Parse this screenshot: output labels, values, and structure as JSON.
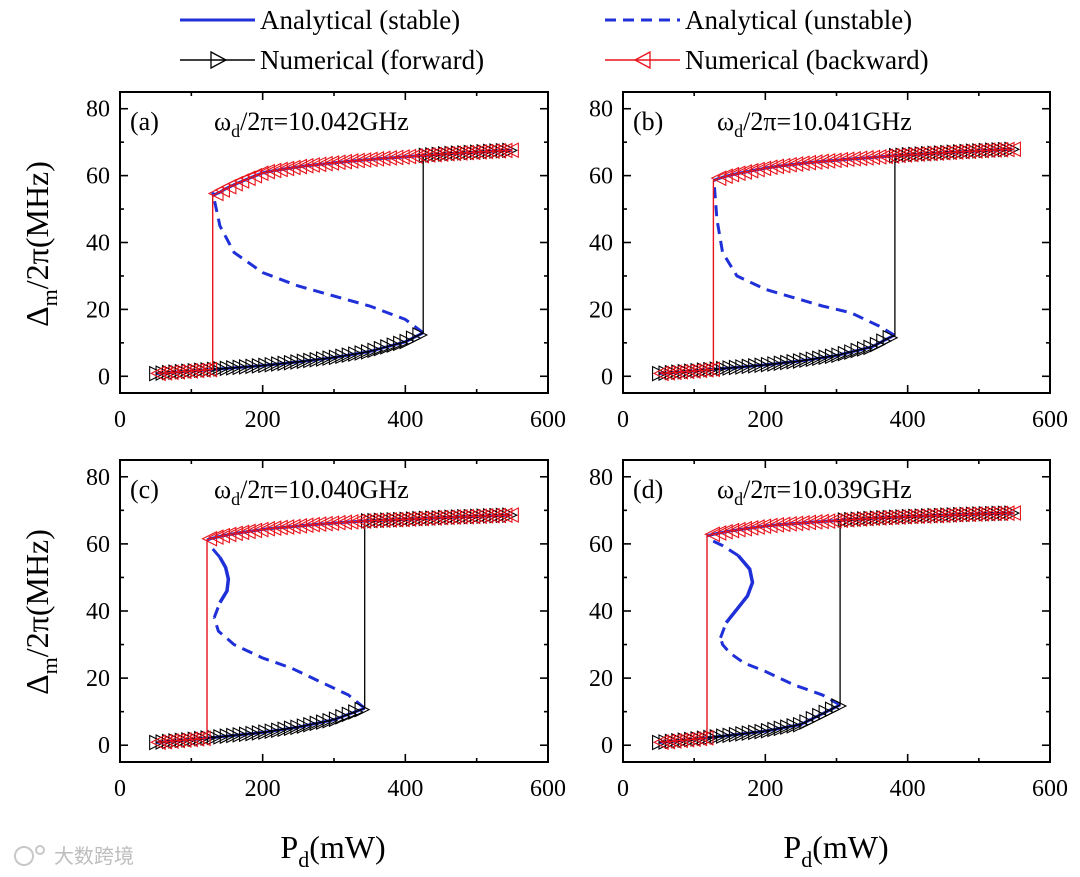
{
  "legend": {
    "items": [
      {
        "label": "Analytical (stable)",
        "style": "solid",
        "color": "#1f30d8",
        "marker": "none"
      },
      {
        "label": "Analytical (unstable)",
        "style": "dashed",
        "color": "#1f30d8",
        "marker": "none"
      },
      {
        "label": "Numerical (forward)",
        "style": "solid",
        "color": "#000000",
        "marker": "triangle-right"
      },
      {
        "label": "Numerical (backward)",
        "style": "solid",
        "color": "#e8121a",
        "marker": "triangle-left"
      }
    ]
  },
  "colors": {
    "analytical": "#1f30d8",
    "forward": "#000000",
    "backward": "#e8121a",
    "axis": "#000000"
  },
  "axis_titles": {
    "ylabel_top": {
      "a": "Δ",
      "b": "m",
      "c": "/2π(MHz)"
    },
    "ylabel_bottom": {
      "a": "Δ",
      "b": "m",
      "c": "/2π(MHz)"
    },
    "xlabel_left": {
      "a": "P",
      "b": "d",
      "c": "(mW)"
    },
    "xlabel_right": {
      "a": "P",
      "b": "d",
      "c": "(mW)"
    }
  },
  "watermark": {
    "text": "大数跨境"
  },
  "chart_data": [
    {
      "type": "line",
      "panel": "(a)",
      "freq": {
        "sym": "ω",
        "sub": "d",
        "rest": "/2π=10.042GHz"
      },
      "xlim": [
        0,
        600
      ],
      "ylim": [
        -5,
        85
      ],
      "xticks": [
        0,
        200,
        400,
        600
      ],
      "yticks": [
        0,
        20,
        40,
        60,
        80
      ],
      "x_sample": [
        50,
        100,
        140,
        200,
        250,
        300,
        350,
        400,
        425,
        450,
        500,
        550
      ],
      "lower_branch": [
        0.8,
        1.6,
        2.2,
        3.2,
        4.3,
        5.6,
        7.4,
        10.3,
        13.0,
        null,
        null,
        null
      ],
      "upper_branch": [
        null,
        null,
        55.0,
        60.8,
        62.6,
        63.8,
        64.8,
        65.6,
        66.0,
        66.4,
        67.0,
        67.6
      ],
      "fold_low_mW": 130,
      "fold_high_mW": 425,
      "unstable_branch": {
        "P": [
          425,
          400,
          350,
          300,
          250,
          200,
          160,
          140,
          130
        ],
        "delta": [
          13.0,
          17.0,
          21.0,
          24.0,
          27.0,
          31.0,
          37.0,
          45.0,
          55.0
        ]
      },
      "stable_middle_branch": null
    },
    {
      "type": "line",
      "panel": "(b)",
      "freq": {
        "sym": "ω",
        "sub": "d",
        "rest": "/2π=10.041GHz"
      },
      "xlim": [
        0,
        600
      ],
      "ylim": [
        -5,
        85
      ],
      "xticks": [
        0,
        200,
        400,
        600
      ],
      "yticks": [
        0,
        20,
        40,
        60,
        80
      ],
      "x_sample": [
        50,
        100,
        140,
        200,
        250,
        300,
        350,
        380,
        400,
        450,
        500,
        550
      ],
      "lower_branch": [
        0.8,
        1.6,
        2.3,
        3.4,
        4.6,
        6.2,
        8.8,
        12.2,
        null,
        null,
        null,
        null
      ],
      "upper_branch": [
        null,
        null,
        59.5,
        62.2,
        63.6,
        64.6,
        65.4,
        65.9,
        66.2,
        66.8,
        67.4,
        67.9
      ],
      "fold_low_mW": 127,
      "fold_high_mW": 382,
      "unstable_branch": {
        "P": [
          382,
          360,
          320,
          280,
          240,
          200,
          160,
          140,
          132,
          128
        ],
        "delta": [
          12.2,
          15.0,
          19.0,
          21.0,
          23.5,
          26.0,
          30.0,
          37.0,
          47.0,
          58.0
        ]
      },
      "stable_middle_branch": null
    },
    {
      "type": "line",
      "panel": "(c)",
      "freq": {
        "sym": "ω",
        "sub": "d",
        "rest": "/2π=10.040GHz"
      },
      "xlim": [
        0,
        600
      ],
      "ylim": [
        -5,
        85
      ],
      "xticks": [
        0,
        200,
        400,
        600
      ],
      "yticks": [
        0,
        20,
        40,
        60,
        80
      ],
      "x_sample": [
        50,
        100,
        140,
        200,
        250,
        300,
        343,
        400,
        450,
        500,
        550
      ],
      "lower_branch": [
        0.8,
        1.7,
        2.5,
        3.8,
        5.4,
        7.6,
        11.0,
        null,
        null,
        null,
        null
      ],
      "upper_branch": [
        null,
        null,
        62.2,
        64.3,
        65.3,
        66.2,
        66.8,
        67.3,
        67.8,
        68.2,
        68.6
      ],
      "fold_low_mW": 122,
      "fold_high_mW": 343,
      "unstable_branch": {
        "P": [
          343,
          320,
          280,
          240,
          200,
          160,
          138,
          132
        ],
        "delta": [
          11.0,
          15.0,
          19.0,
          23.0,
          26.0,
          30.0,
          34.0,
          38.0
        ]
      },
      "stable_middle_branch": {
        "P": [
          132,
          140,
          150,
          152,
          148,
          140,
          130,
          124
        ],
        "delta": [
          38.0,
          42.5,
          46.0,
          49.5,
          53.0,
          56.0,
          58.5,
          60.0
        ]
      }
    },
    {
      "type": "line",
      "panel": "(d)",
      "freq": {
        "sym": "ω",
        "sub": "d",
        "rest": "/2π=10.039GHz"
      },
      "xlim": [
        0,
        600
      ],
      "ylim": [
        -5,
        85
      ],
      "xticks": [
        0,
        200,
        400,
        600
      ],
      "yticks": [
        0,
        20,
        40,
        60,
        80
      ],
      "x_sample": [
        50,
        100,
        140,
        200,
        250,
        305,
        350,
        400,
        450,
        500,
        550
      ],
      "lower_branch": [
        0.8,
        1.8,
        2.7,
        4.2,
        6.2,
        12.0,
        null,
        null,
        null,
        null,
        null
      ],
      "upper_branch": [
        null,
        null,
        63.4,
        65.3,
        66.2,
        67.0,
        67.6,
        68.1,
        68.5,
        68.9,
        69.2
      ],
      "fold_low_mW": 118,
      "fold_high_mW": 305,
      "unstable_branch": {
        "P": [
          305,
          280,
          240,
          200,
          170,
          150,
          140,
          137
        ],
        "delta": [
          12.0,
          15.0,
          18.0,
          22.0,
          24.5,
          27.5,
          30.0,
          32.0
        ]
      },
      "stable_middle_branch": {
        "P": [
          137,
          145,
          160,
          175,
          182,
          178,
          162,
          140,
          120
        ],
        "delta": [
          32.0,
          36.5,
          40.5,
          44.5,
          48.5,
          52.5,
          56.5,
          59.5,
          61.5
        ]
      }
    }
  ]
}
